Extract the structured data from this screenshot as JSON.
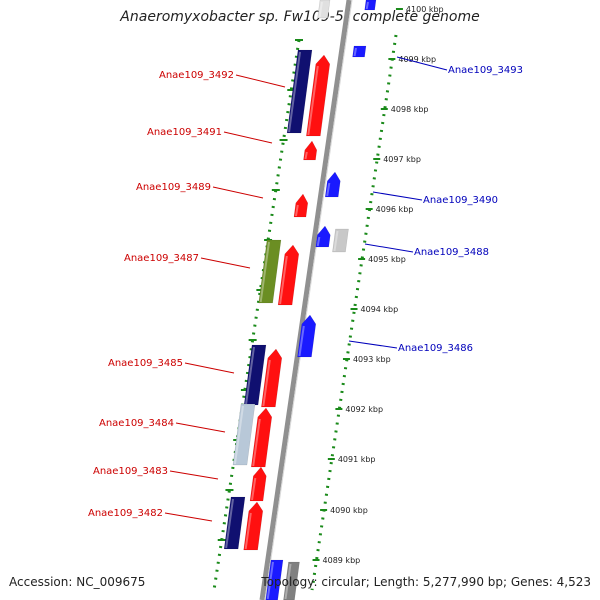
{
  "title": "Anaeromyxobacter sp. Fw109-5, complete genome",
  "footer": {
    "accession": "Accession: NC_009675",
    "info": "Topology: circular; Length: 5,277,990 bp; Genes: 4,523"
  },
  "colors": {
    "backbone": "#909090",
    "ruler_dots": "#1a8a1a",
    "forward_label": "#cc0000",
    "reverse_label": "#0000bb",
    "red_gene": "#ff1010",
    "blue_gene": "#1a1aff",
    "navy_gene": "#101070",
    "olive_gene": "#6b8e23",
    "grey_gene": "#c8c8c8"
  },
  "ruler_ticks": [
    {
      "label": "4100 kbp"
    },
    {
      "label": "4099 kbp"
    },
    {
      "label": "4098 kbp"
    },
    {
      "label": "4097 kbp"
    },
    {
      "label": "4096 kbp"
    },
    {
      "label": "4095 kbp"
    },
    {
      "label": "4094 kbp"
    },
    {
      "label": "4093 kbp"
    },
    {
      "label": "4092 kbp"
    },
    {
      "label": "4091 kbp"
    },
    {
      "label": "4090 kbp"
    },
    {
      "label": "4089 kbp"
    }
  ],
  "forward_genes": [
    {
      "label": "Anae109_3492"
    },
    {
      "label": "Anae109_3491"
    },
    {
      "label": "Anae109_3489"
    },
    {
      "label": "Anae109_3487"
    },
    {
      "label": "Anae109_3485"
    },
    {
      "label": "Anae109_3484"
    },
    {
      "label": "Anae109_3483"
    },
    {
      "label": "Anae109_3482"
    }
  ],
  "reverse_genes": [
    {
      "label": "Anae109_3493"
    },
    {
      "label": "Anae109_3490"
    },
    {
      "label": "Anae109_3488"
    },
    {
      "label": "Anae109_3486"
    }
  ]
}
